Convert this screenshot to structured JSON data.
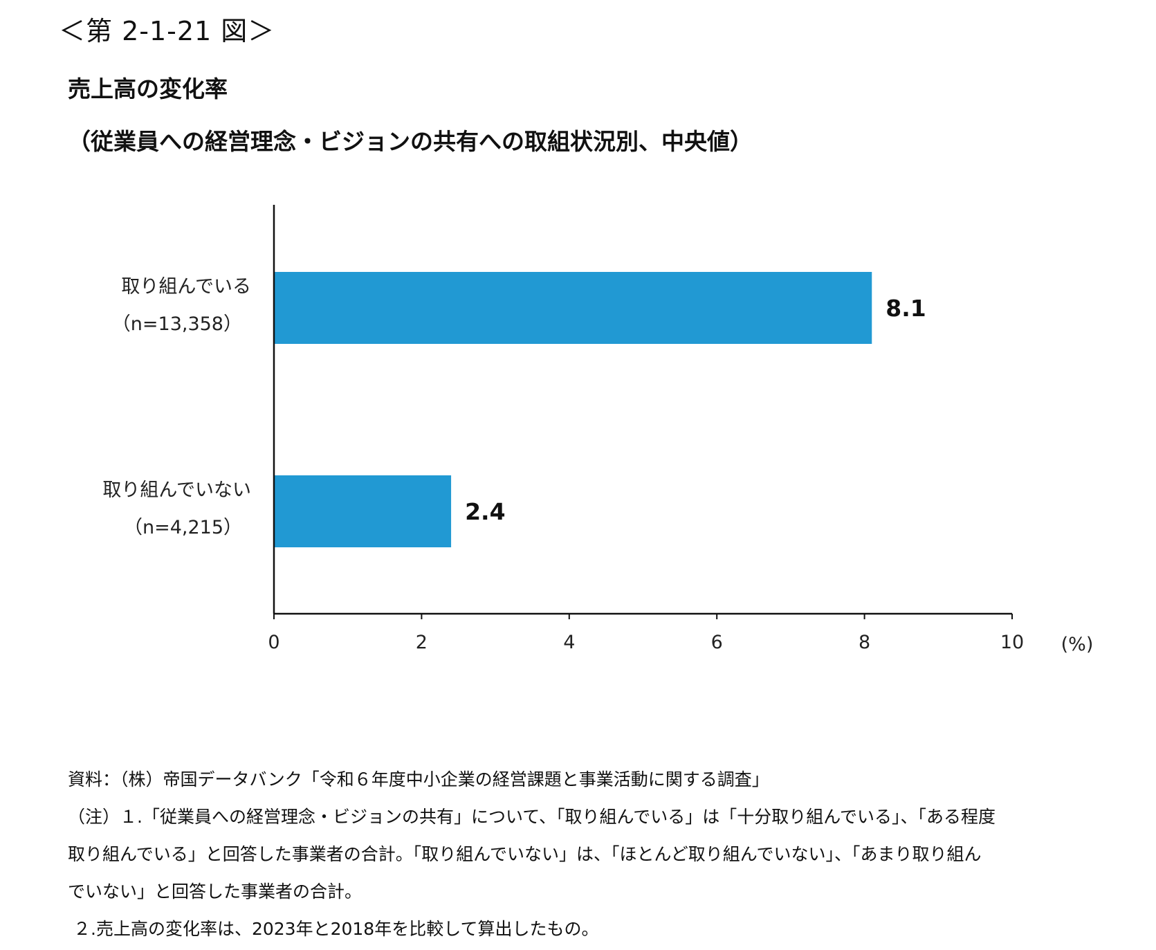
{
  "figure_number": "＜第 2-1-21 図＞",
  "title": "売上高の変化率",
  "subtitle": "（従業員への経営理念・ビジョンの共有への取組状況別、中央値）",
  "chart_data": {
    "type": "bar",
    "orientation": "horizontal",
    "categories": [
      {
        "label": "取り組んでいる",
        "sublabel": "（n=13,358）"
      },
      {
        "label": "取り組んでいない",
        "sublabel": "（n=4,215）"
      }
    ],
    "values": [
      8.1,
      2.4
    ],
    "value_labels": [
      "8.1",
      "2.4"
    ],
    "xlim": [
      0,
      10
    ],
    "xticks": [
      "0",
      "2",
      "4",
      "6",
      "8",
      "10"
    ],
    "xunit": "(%)",
    "bar_color": "#2199d3",
    "grid": false
  },
  "notes": {
    "source": "資料：（株）帝国データバンク「令和６年度中小企業の経営課題と事業活動に関する調査」",
    "note1_line1": "（注）１.「従業員への経営理念・ビジョンの共有」について、「取り組んでいる」は「十分取り組んでいる」、「ある程度",
    "note1_line2": "取り組んでいる」と回答した事業者の合計。「取り組んでいない」は、「ほとんど取り組んでいない」、「あまり取り組ん",
    "note1_line3": "でいない」と回答した事業者の合計。",
    "note2": "２.売上高の変化率は、2023年と2018年を比較して算出したもの。"
  }
}
